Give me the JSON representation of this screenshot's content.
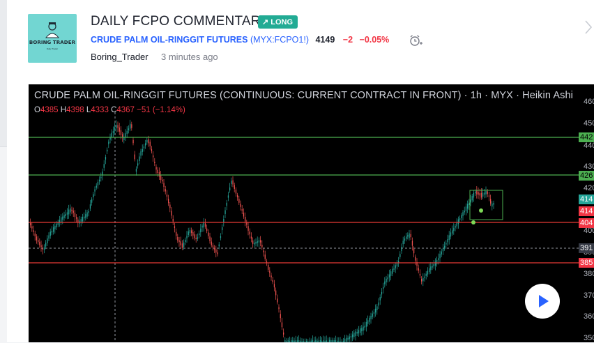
{
  "post": {
    "title": "DAILY FCPO COMMENTARY",
    "badge": "LONG",
    "badge_icon": "arrow-up-right-icon",
    "symbol_name": "CRUDE PALM OIL-RINGGIT FUTURES",
    "symbol_open": "(",
    "symbol_code": "MYX:FCPO1!",
    "symbol_close": ")",
    "price": "4149",
    "change": "−2",
    "change_pct": "−0.05%",
    "author": "Boring_Trader",
    "time": "3 minutes ago",
    "logo_text": "BORING TRADER",
    "logo_sub": "Daily Trader"
  },
  "chart": {
    "title": "CRUDE PALM OIL-RINGGIT FUTURES (CONTINUOUS: CURRENT CONTRACT IN FRONT) · 1h · MYX · Heikin Ashi",
    "ohlc": {
      "o_label": "O",
      "o": "4385",
      "h_label": "H",
      "h": "4398",
      "l_label": "L",
      "l": "4333",
      "c_label": "C",
      "c": "4367",
      "chg": "−51 (−1.14%)"
    },
    "price_axis": [
      "460",
      "450",
      "440",
      "430",
      "420",
      "410",
      "400",
      "390",
      "380",
      "370",
      "360",
      "350"
    ],
    "price_labels": [
      {
        "text": "442",
        "color": "#4caf50"
      },
      {
        "text": "426",
        "color": "#4caf50"
      },
      {
        "text": "414",
        "color": "#26a69a"
      },
      {
        "text": "414",
        "color": "#f23645"
      },
      {
        "text": "404",
        "color": "#f23645"
      },
      {
        "text": "391",
        "color": "#363a45"
      },
      {
        "text": "385",
        "color": "#f23645"
      }
    ]
  },
  "colors": {
    "accent": "#2962ff",
    "up": "#26a69a",
    "down": "#ef5350",
    "support": "#e53935",
    "resistance": "#4caf50",
    "long_badge": "#22ab94"
  }
}
